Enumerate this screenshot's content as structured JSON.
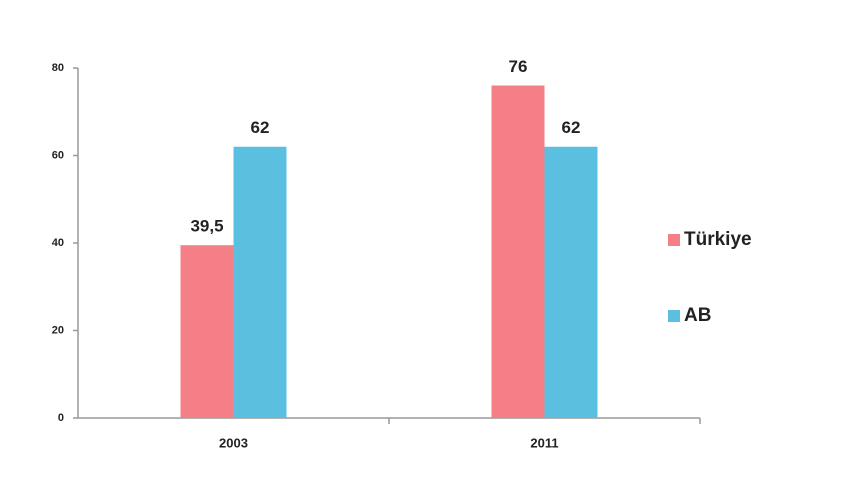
{
  "chart_data": {
    "type": "bar",
    "categories": [
      "2003",
      "2011"
    ],
    "series": [
      {
        "name": "Türkiye",
        "color": "#f47f86",
        "values": [
          39.5,
          76
        ],
        "value_labels": [
          "39,5",
          "76"
        ]
      },
      {
        "name": "AB",
        "color": "#5bc0e0",
        "values": [
          62,
          62
        ]
      }
    ],
    "ylim": [
      0,
      80
    ],
    "yticks": [
      0,
      20,
      40,
      60,
      80
    ],
    "legend": "right"
  }
}
